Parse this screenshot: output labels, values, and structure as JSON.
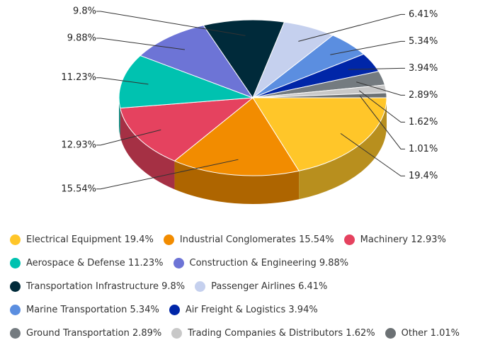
{
  "chart_data": {
    "type": "pie",
    "categories": [
      "Electrical Equipment",
      "Industrial Conglomerates",
      "Machinery",
      "Aerospace & Defense",
      "Construction & Engineering",
      "Transportation Infrastructure",
      "Passenger Airlines",
      "Marine Transportation",
      "Air Freight & Logistics",
      "Ground Transportation",
      "Trading Companies & Distributors",
      "Other"
    ],
    "values": [
      19.4,
      15.54,
      12.93,
      11.23,
      9.88,
      9.8,
      6.41,
      5.34,
      3.94,
      2.89,
      1.62,
      1.01
    ],
    "value_labels": [
      "19.4%",
      "15.54%",
      "12.93%",
      "11.23%",
      "9.88%",
      "9.8%",
      "6.41%",
      "5.34%",
      "3.94%",
      "2.89%",
      "1.62%",
      "1.01%"
    ],
    "colors": [
      "#ffc629",
      "#f28c00",
      "#e5425f",
      "#00c2b0",
      "#6d74d6",
      "#002a3a",
      "#c5d0ee",
      "#5b8ee0",
      "#0026a8",
      "#747b80",
      "#c8c8c8",
      "#6c7174"
    ],
    "legend": "bottom"
  }
}
